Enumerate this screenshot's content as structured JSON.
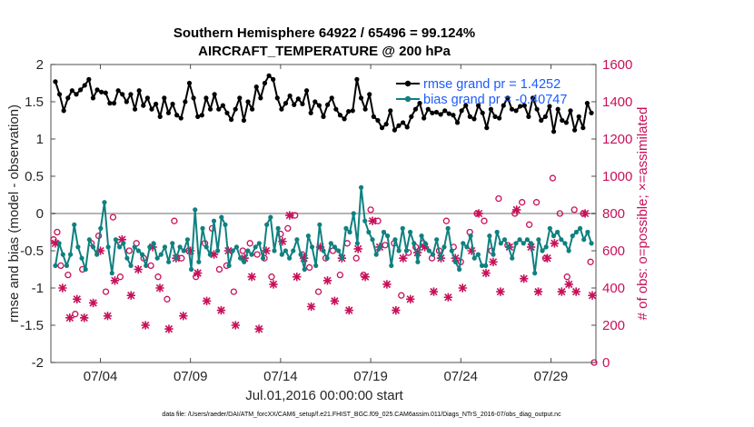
{
  "chart_data": {
    "type": "line",
    "title_line1": "Southern Hemisphere 64922 / 65496 = 99.124%",
    "title_line2": "AIRCRAFT_TEMPERATURE @ 200 hPa",
    "xlabel": "Jul.01,2016 00:00:00 start",
    "ylabel_left": "rmse and bias (model - observation)",
    "ylabel_right": "# of obs: o=possible; ×=assimilated",
    "x_ticks": [
      "07/04",
      "07/09",
      "07/14",
      "07/19",
      "07/24",
      "07/29"
    ],
    "x_tick_days": [
      4,
      9,
      14,
      19,
      24,
      29
    ],
    "xlim": [
      1.25,
      31.5
    ],
    "ylim_left": [
      -2,
      2
    ],
    "ylim_right": [
      0,
      1600
    ],
    "y_ticks_left": [
      "-2",
      "-1.5",
      "-1",
      "-0.5",
      "0",
      "0.5",
      "1",
      "1.5",
      "2"
    ],
    "y_ticks_right": [
      "0",
      "200",
      "400",
      "600",
      "800",
      "1000",
      "1200",
      "1400",
      "1600"
    ],
    "legend": [
      {
        "label": "rmse grand pr = 1.4252",
        "color": "#000000"
      },
      {
        "label": "bias grand pr = -0.40747",
        "color": "#108080"
      }
    ],
    "series": [
      {
        "name": "rmse",
        "color": "#000000",
        "values": [
          1.77,
          1.6,
          1.38,
          1.55,
          1.65,
          1.6,
          1.66,
          1.72,
          1.8,
          1.55,
          1.66,
          1.63,
          1.62,
          1.48,
          1.48,
          1.65,
          1.6,
          1.5,
          1.6,
          1.4,
          1.65,
          1.45,
          1.55,
          1.4,
          1.47,
          1.3,
          1.55,
          1.35,
          1.47,
          1.32,
          1.28,
          1.5,
          1.75,
          1.55,
          1.3,
          1.32,
          1.55,
          1.4,
          1.6,
          1.4,
          1.45,
          1.35,
          1.26,
          1.4,
          1.55,
          1.25,
          1.5,
          1.4,
          1.7,
          1.55,
          1.75,
          1.85,
          1.8,
          1.55,
          1.4,
          1.48,
          1.58,
          1.46,
          1.54,
          1.47,
          1.65,
          1.35,
          1.5,
          1.45,
          1.3,
          1.46,
          1.55,
          1.4,
          1.32,
          1.27,
          1.37,
          1.38,
          1.8,
          1.55,
          1.4,
          1.6,
          1.3,
          1.25,
          1.15,
          1.2,
          1.38,
          1.12,
          1.18,
          1.22,
          1.16,
          1.3,
          1.4,
          1.48,
          1.28,
          1.4,
          1.35,
          1.36,
          1.33,
          1.38,
          1.34,
          1.32,
          1.22,
          1.38,
          1.45,
          1.3,
          1.27,
          1.45,
          1.35,
          1.15,
          1.4,
          1.3,
          1.28,
          1.45,
          1.55,
          1.4,
          1.38,
          1.44,
          1.45,
          1.3,
          1.55,
          1.4,
          1.25,
          1.3,
          1.44,
          1.1,
          1.4,
          1.25,
          1.22,
          1.38,
          1.12,
          1.3,
          1.15,
          1.48,
          1.35
        ]
      },
      {
        "name": "bias",
        "color": "#108080",
        "values": [
          -0.7,
          -0.4,
          -0.55,
          -0.7,
          -0.55,
          -0.15,
          -0.45,
          -0.6,
          -0.75,
          -0.35,
          -0.45,
          -0.55,
          -0.2,
          0.15,
          -0.45,
          -0.8,
          -0.35,
          -0.45,
          -0.4,
          -0.6,
          -0.7,
          -0.45,
          -0.5,
          -0.55,
          -0.7,
          -0.45,
          -0.4,
          -0.6,
          -0.55,
          -0.45,
          -0.65,
          -0.4,
          -0.6,
          -0.45,
          -0.5,
          -0.35,
          -0.75,
          0.05,
          -0.65,
          -0.2,
          -0.45,
          -0.55,
          -0.1,
          -0.5,
          -0.05,
          -0.15,
          -0.7,
          -0.5,
          -0.45,
          -0.6,
          -0.65,
          -0.5,
          -0.55,
          -0.45,
          -0.4,
          -0.6,
          -0.15,
          -0.05,
          -0.5,
          -0.2,
          -0.55,
          -0.5,
          -0.6,
          -0.5,
          -0.35,
          -0.55,
          -0.75,
          -0.3,
          -0.45,
          -0.7,
          -0.15,
          -0.5,
          -0.6,
          -0.4,
          -0.45,
          -0.5,
          -0.6,
          -0.2,
          -0.25,
          0.0,
          -0.4,
          0.35,
          -0.1,
          -0.25,
          -0.35,
          -0.55,
          -0.45,
          -0.25,
          -0.3,
          -0.7,
          -0.35,
          -0.5,
          -0.2,
          -0.5,
          -0.25,
          -0.4,
          -0.65,
          -0.3,
          -0.4,
          -0.5,
          -0.55,
          -0.35,
          -0.6,
          -0.45,
          -0.2,
          -0.5,
          -0.65,
          -0.75,
          -0.4,
          -0.45,
          -0.3,
          -0.6,
          -0.55,
          -0.7,
          -0.7,
          -0.3,
          -0.55,
          -0.25,
          -0.4,
          -0.35,
          -0.45,
          -0.6,
          -0.4,
          -0.35,
          -0.4,
          -0.35,
          -0.4,
          -0.8,
          -0.35,
          -0.5,
          -0.45,
          -0.2,
          -0.3,
          -0.25,
          -0.35,
          -0.4,
          -0.5,
          -0.3,
          -0.25,
          -0.2,
          -0.35,
          -0.25,
          -0.4
        ]
      }
    ],
    "obs_possible": {
      "color": "#c8105a",
      "x": [
        1.4,
        1.6,
        1.8,
        2.2,
        2.6,
        3.0,
        3.5,
        3.9,
        4.3,
        4.7,
        5.1,
        5.6,
        6.0,
        6.4,
        6.8,
        7.2,
        7.7,
        8.1,
        8.5,
        8.9,
        9.3,
        9.8,
        10.2,
        10.6,
        11.0,
        11.4,
        11.9,
        12.3,
        12.7,
        13.1,
        13.5,
        14.0,
        14.4,
        14.8,
        15.2,
        15.6,
        16.1,
        16.5,
        16.9,
        17.3,
        17.7,
        18.2,
        18.6,
        19.0,
        19.4,
        19.8,
        20.3,
        20.7,
        21.1,
        21.5,
        21.9,
        22.4,
        22.8,
        23.2,
        23.6,
        24.0,
        24.5,
        24.9,
        25.3,
        25.7,
        26.1,
        26.6,
        27.0,
        27.4,
        27.8,
        28.2,
        28.7,
        29.1,
        29.5,
        29.9,
        30.3,
        30.8,
        31.2,
        31.4
      ],
      "y": [
        660,
        700,
        520,
        470,
        260,
        500,
        640,
        680,
        380,
        780,
        460,
        600,
        640,
        560,
        520,
        460,
        340,
        760,
        560,
        600,
        460,
        640,
        720,
        500,
        520,
        380,
        600,
        640,
        580,
        560,
        460,
        690,
        720,
        790,
        580,
        510,
        380,
        560,
        600,
        470,
        640,
        560,
        470,
        820,
        760,
        630,
        640,
        360,
        590,
        620,
        640,
        560,
        600,
        760,
        620,
        540,
        700,
        800,
        760,
        600,
        880,
        630,
        800,
        860,
        740,
        860,
        560,
        990,
        800,
        460,
        820,
        800,
        540,
        0
      ]
    },
    "obs_assimilated": {
      "color": "#c8105a",
      "x": [
        1.5,
        1.9,
        2.3,
        2.7,
        3.1,
        3.6,
        4.0,
        4.4,
        4.8,
        5.2,
        5.7,
        6.1,
        6.5,
        6.9,
        7.3,
        7.8,
        8.2,
        8.6,
        9.0,
        9.4,
        9.9,
        10.3,
        10.7,
        11.1,
        11.5,
        12.0,
        12.4,
        12.8,
        13.2,
        13.6,
        14.1,
        14.5,
        14.9,
        15.3,
        15.7,
        16.2,
        16.6,
        17.0,
        17.4,
        17.8,
        18.3,
        18.7,
        19.1,
        19.5,
        19.9,
        20.4,
        20.8,
        21.2,
        21.6,
        22.0,
        22.5,
        22.9,
        23.3,
        23.7,
        24.1,
        24.6,
        25.0,
        25.4,
        25.8,
        26.2,
        26.7,
        27.1,
        27.5,
        27.9,
        28.3,
        28.8,
        29.2,
        29.6,
        30.0,
        30.4,
        30.9,
        31.3
      ],
      "y": [
        640,
        400,
        240,
        340,
        240,
        320,
        600,
        250,
        440,
        660,
        360,
        500,
        200,
        620,
        400,
        180,
        560,
        250,
        600,
        480,
        330,
        580,
        280,
        600,
        200,
        560,
        460,
        180,
        600,
        420,
        650,
        790,
        460,
        560,
        300,
        620,
        440,
        330,
        560,
        280,
        610,
        460,
        760,
        620,
        420,
        280,
        560,
        340,
        590,
        620,
        380,
        560,
        350,
        560,
        400,
        600,
        800,
        480,
        540,
        380,
        620,
        820,
        450,
        620,
        380,
        560,
        640,
        380,
        420,
        380,
        800,
        360
      ]
    },
    "footer": "data file: /Users/raeder/DAI/ATM_forcXX/CAM6_setup/f.e21.FHIST_BGC.f09_025.CAM6assim.011/Diags_NTrS_2016-07/obs_diag_output.nc"
  }
}
